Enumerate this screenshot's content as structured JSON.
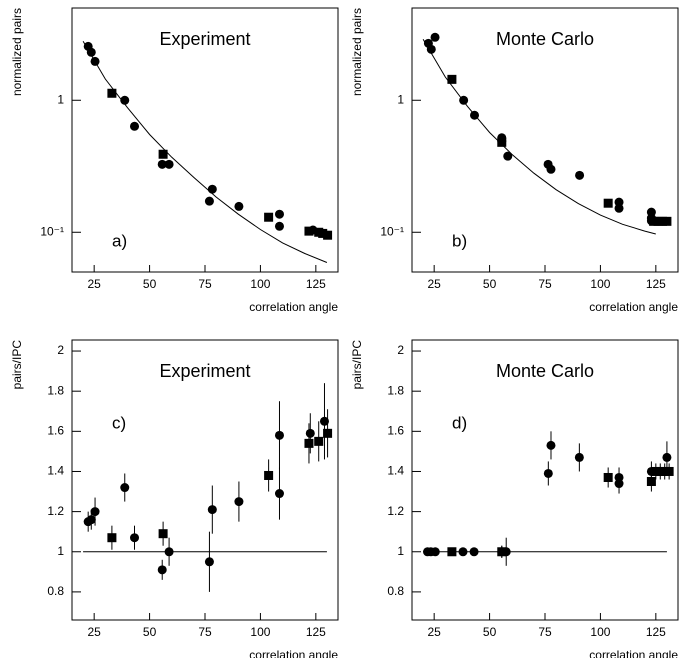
{
  "chart_data": [
    {
      "type": "scatter",
      "title": "Experiment",
      "panel_label": "a)",
      "ylabel": "normalized pairs",
      "xlabel": "correlation angle",
      "log_y": true,
      "xlim": [
        15,
        135
      ],
      "xticks": [
        25,
        50,
        75,
        100,
        125
      ],
      "ylim": [
        0.05,
        5
      ],
      "yticks": [
        {
          "value": 0.1,
          "label": "10⁻¹"
        },
        1
      ],
      "series": [
        {
          "marker": "circle",
          "color": "#000000",
          "x": [
            22.3,
            23.7,
            25.4,
            38.8,
            43.2,
            55.7,
            58.8,
            77,
            78.3,
            90.3,
            108.6,
            108.6,
            123.7
          ],
          "values": [
            2.56,
            2.31,
            1.97,
            1.0,
            0.635,
            0.327,
            0.327,
            0.172,
            0.212,
            0.157,
            0.137,
            0.111,
            0.104
          ]
        },
        {
          "marker": "square",
          "color": "#000000",
          "x": [
            33,
            56.1,
            103.7,
            121.9,
            126.3,
            128.1,
            130.3
          ],
          "values": [
            1.13,
            0.39,
            0.13,
            0.102,
            0.1,
            0.098,
            0.095
          ]
        }
      ],
      "curve": {
        "x": [
          20,
          30,
          40,
          50,
          60,
          70,
          80,
          90,
          100,
          110,
          120,
          130
        ],
        "values": [
          2.8,
          1.45,
          0.88,
          0.55,
          0.37,
          0.26,
          0.185,
          0.137,
          0.105,
          0.083,
          0.069,
          0.059
        ]
      }
    },
    {
      "type": "scatter",
      "title": "Monte Carlo",
      "panel_label": "b)",
      "ylabel": "normalized pairs",
      "xlabel": "correlation angle",
      "log_y": true,
      "xlim": [
        15,
        135
      ],
      "xticks": [
        25,
        50,
        75,
        100,
        125
      ],
      "ylim": [
        0.05,
        5
      ],
      "yticks": [
        {
          "value": 0.1,
          "label": "10⁻¹"
        },
        1
      ],
      "series": [
        {
          "marker": "circle",
          "color": "#000000",
          "x": [
            22.4,
            23.7,
            25.4,
            38.3,
            43.2,
            55.5,
            55.5,
            58.2,
            76.4,
            77.7,
            90.6,
            108.4,
            108.4,
            123,
            123,
            123
          ],
          "values": [
            2.7,
            2.43,
            3.0,
            1.0,
            0.77,
            0.52,
            0.49,
            0.377,
            0.327,
            0.3,
            0.27,
            0.169,
            0.152,
            0.142,
            0.128,
            0.122
          ]
        },
        {
          "marker": "square",
          "color": "#000000",
          "x": [
            33,
            55.5,
            103.5,
            124,
            126,
            128,
            130
          ],
          "values": [
            1.44,
            0.48,
            0.166,
            0.121,
            0.121,
            0.121,
            0.121
          ]
        }
      ],
      "curve": {
        "x": [
          20,
          30,
          40,
          50,
          60,
          70,
          80,
          90,
          100,
          110,
          120,
          125
        ],
        "values": [
          2.9,
          1.5,
          0.9,
          0.57,
          0.39,
          0.28,
          0.21,
          0.165,
          0.135,
          0.115,
          0.102,
          0.097
        ]
      }
    },
    {
      "type": "scatter",
      "title": "Experiment",
      "panel_label": "c)",
      "ylabel": "pairs/IPC",
      "xlabel": "correlation angle",
      "log_y": false,
      "xlim": [
        15,
        135
      ],
      "xticks": [
        25,
        50,
        75,
        100,
        125
      ],
      "ylim": [
        0.66,
        2.055
      ],
      "yticks": [
        0.8,
        1,
        1.2,
        1.4,
        1.6,
        1.8,
        2
      ],
      "series": [
        {
          "marker": "circle",
          "color": "#000000",
          "x": [
            22.3,
            23.7,
            25.4,
            38.8,
            43.2,
            55.7,
            58.8,
            77,
            78.3,
            90.3,
            108.6,
            108.6,
            122.5,
            128.9
          ],
          "values": [
            1.15,
            1.16,
            1.2,
            1.32,
            1.07,
            0.91,
            1.0,
            0.95,
            1.21,
            1.25,
            1.58,
            1.29,
            1.59,
            1.65
          ],
          "errors": [
            0.05,
            0.05,
            0.07,
            0.07,
            0.06,
            0.05,
            0.07,
            0.15,
            0.12,
            0.1,
            0.17,
            0.13,
            0.1,
            0.19
          ]
        },
        {
          "marker": "square",
          "color": "#000000",
          "x": [
            33,
            56.1,
            103.7,
            121.9,
            126.3,
            130.3
          ],
          "values": [
            1.07,
            1.09,
            1.38,
            1.54,
            1.55,
            1.59
          ],
          "errors": [
            0.06,
            0.06,
            0.08,
            0.1,
            0.1,
            0.12
          ]
        }
      ],
      "hline": 1
    },
    {
      "type": "scatter",
      "title": "Monte Carlo",
      "panel_label": "d)",
      "ylabel": "pairs/IPC",
      "xlabel": "correlation angle",
      "log_y": false,
      "xlim": [
        15,
        135
      ],
      "xticks": [
        25,
        50,
        75,
        100,
        125
      ],
      "ylim": [
        0.66,
        2.055
      ],
      "yticks": [
        0.8,
        1,
        1.2,
        1.4,
        1.6,
        1.8,
        2
      ],
      "series": [
        {
          "marker": "circle",
          "color": "#000000",
          "x": [
            22,
            23.5,
            25.5,
            38,
            43,
            55.5,
            57.5,
            76.5,
            77.7,
            90.5,
            108.4,
            108.4,
            123,
            130
          ],
          "values": [
            1.0,
            1.0,
            1.0,
            1.0,
            1.0,
            1.0,
            1.0,
            1.39,
            1.53,
            1.47,
            1.37,
            1.34,
            1.4,
            1.47
          ],
          "errors": [
            0.02,
            0.02,
            0.02,
            0.02,
            0.02,
            0.03,
            0.07,
            0.06,
            0.07,
            0.07,
            0.05,
            0.05,
            0.05,
            0.08
          ]
        },
        {
          "marker": "square",
          "color": "#000000",
          "x": [
            33,
            55.5,
            103.5,
            123,
            125,
            127,
            129,
            131
          ],
          "values": [
            1.0,
            1.0,
            1.37,
            1.35,
            1.4,
            1.4,
            1.4,
            1.4
          ],
          "errors": [
            0.02,
            0.03,
            0.05,
            0.05,
            0.04,
            0.04,
            0.04,
            0.04
          ]
        }
      ],
      "hline": 1
    }
  ]
}
